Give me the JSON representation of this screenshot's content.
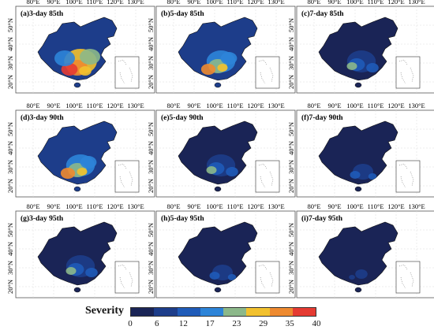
{
  "panels": [
    {
      "id": "a",
      "title": "(a)3-day 85th",
      "level": "high"
    },
    {
      "id": "b",
      "title": "(b)5-day 85th",
      "level": "midhigh"
    },
    {
      "id": "c",
      "title": "(c)7-day 85th",
      "level": "mid"
    },
    {
      "id": "d",
      "title": "(d)3-day 90th",
      "level": "midhigh"
    },
    {
      "id": "e",
      "title": "(e)5-day 90th",
      "level": "mid"
    },
    {
      "id": "f",
      "title": "(f)7-day 90th",
      "level": "low"
    },
    {
      "id": "g",
      "title": "(g)3-day 95th",
      "level": "mid"
    },
    {
      "id": "h",
      "title": "(h)5-day 95th",
      "level": "low"
    },
    {
      "id": "i",
      "title": "(i)7-day 95th",
      "level": "verylow"
    }
  ],
  "x_ticks": [
    "80°E",
    "90°E",
    "100°E",
    "110°E",
    "120°E",
    "130°E"
  ],
  "y_ticks": [
    "50°N",
    "40°N",
    "30°N",
    "20°N"
  ],
  "legend": {
    "title": "Severity",
    "labels": [
      "0",
      "6",
      "12",
      "17",
      "23",
      "29",
      "35",
      "40"
    ],
    "colors": [
      "#1a2456",
      "#1d3d8a",
      "#1f5bb8",
      "#2d84d8",
      "#8cb88a",
      "#f2c12e",
      "#ee8a2f",
      "#e53b32"
    ]
  }
}
